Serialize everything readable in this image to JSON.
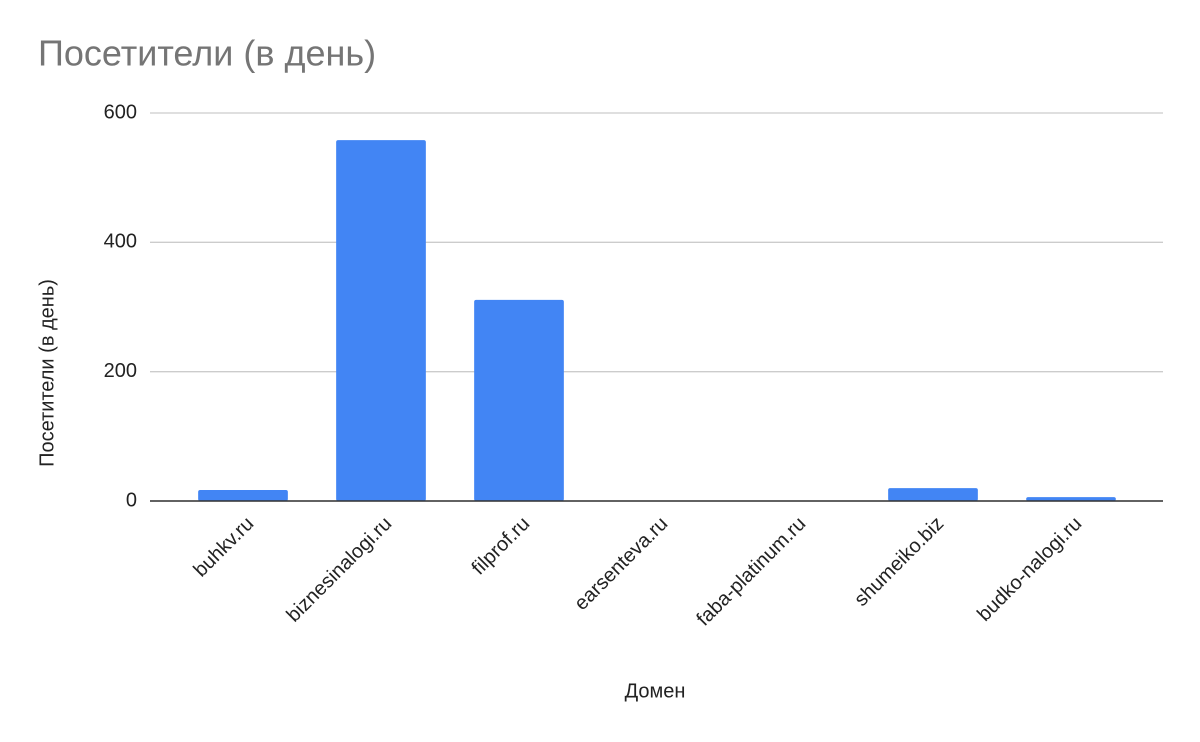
{
  "chart_data": {
    "type": "bar",
    "title": "Посетители (в день)",
    "x_label": "Домен",
    "y_label": "Посетители (в день)",
    "categories": [
      "buhkv.ru",
      "biznesinalogi.ru",
      "filprof.ru",
      "earsenteva.ru",
      "faba-platinum.ru",
      "shumeiko.biz",
      "budko-nalogi.ru"
    ],
    "values": [
      17,
      558,
      311,
      0,
      0,
      20,
      6
    ],
    "color": "#4285f4",
    "ylim": [
      0,
      600
    ],
    "yticks": [
      0,
      200,
      400,
      600
    ],
    "grid": true
  }
}
